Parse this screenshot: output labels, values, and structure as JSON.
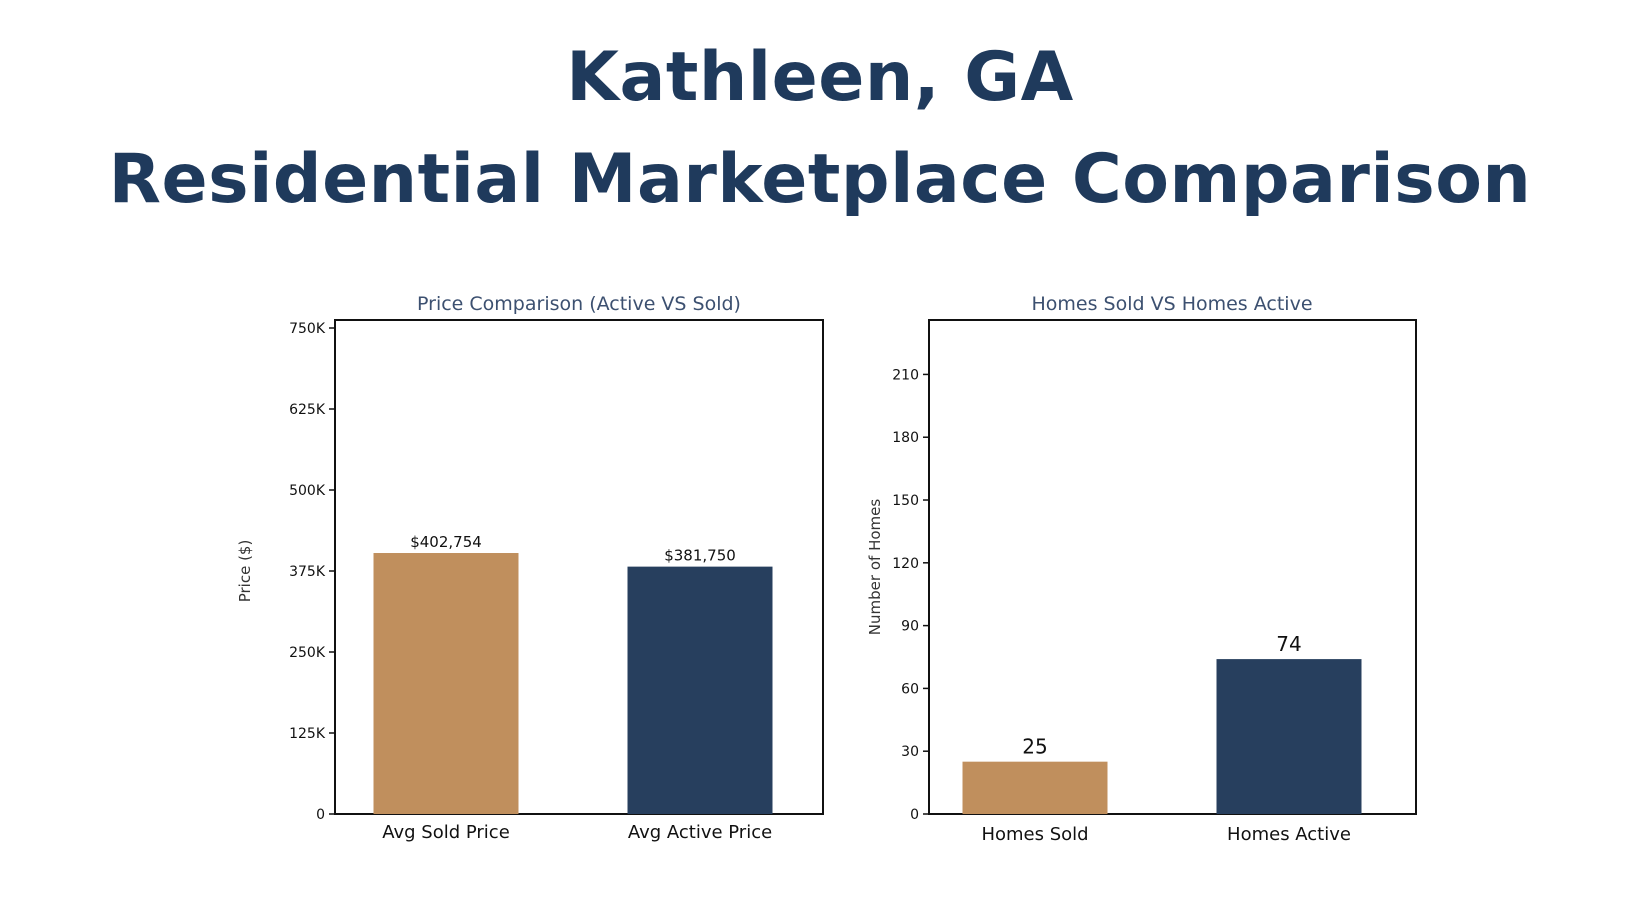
{
  "header": {
    "line1": "Kathleen,  GA",
    "line2": "Residential Marketplace Comparison"
  },
  "chart_data": [
    {
      "type": "bar",
      "title": "Price Comparison (Active VS Sold)",
      "xlabel": "",
      "ylabel": "Price ($)",
      "categories": [
        "Avg Sold Price",
        "Avg Active Price"
      ],
      "values": [
        402754,
        381750
      ],
      "data_labels": [
        "$402,754",
        "$381,750"
      ],
      "colors": [
        "#c08f5d",
        "#273f5e"
      ],
      "ylim": [
        0,
        750000
      ],
      "yticks": [
        0,
        125000,
        250000,
        375000,
        500000,
        625000,
        750000
      ],
      "ytick_labels": [
        "0",
        "125K",
        "250K",
        "375K",
        "500K",
        "625K",
        "750K"
      ],
      "grid": false
    },
    {
      "type": "bar",
      "title": "Homes Sold VS Homes Active",
      "xlabel": "",
      "ylabel": "Number of Homes",
      "categories": [
        "Homes Sold",
        "Homes Active"
      ],
      "values": [
        25,
        74
      ],
      "data_labels": [
        "25",
        "74"
      ],
      "colors": [
        "#c08f5d",
        "#273f5e"
      ],
      "ylim": [
        0,
        236
      ],
      "yticks": [
        0,
        30,
        60,
        90,
        120,
        150,
        180,
        210
      ],
      "ytick_labels": [
        "0",
        "30",
        "60",
        "90",
        "120",
        "150",
        "180",
        "210"
      ],
      "grid": false
    }
  ]
}
